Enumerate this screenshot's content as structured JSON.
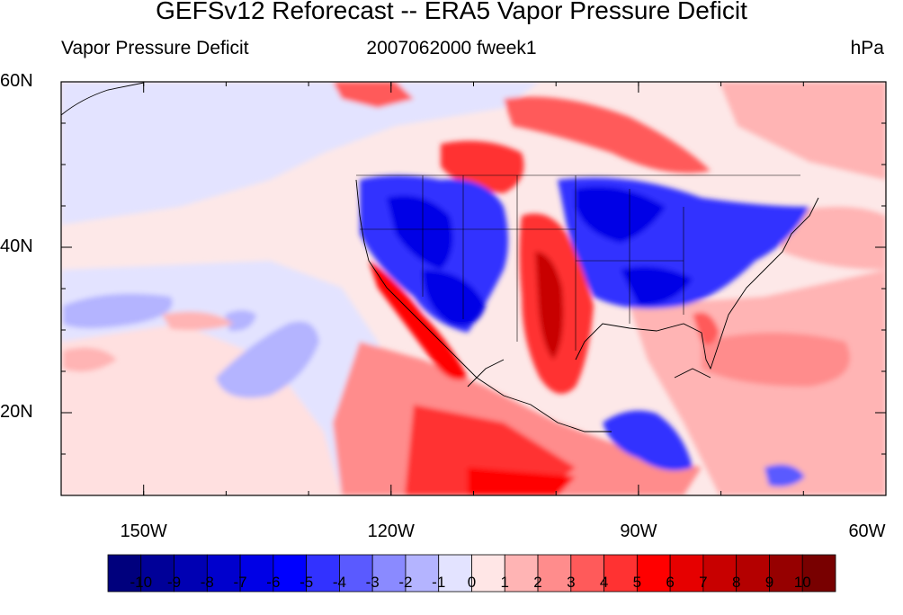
{
  "header": {
    "title": "GEFSv12 Reforecast -- ERA5 Vapor Pressure Deficit",
    "left": "Vapor Pressure Deficit",
    "center": "2007062000 fweek1",
    "right": "hPa"
  },
  "map": {
    "extent": {
      "lon": [
        -160,
        -60
      ],
      "lat": [
        10,
        60
      ]
    },
    "lat_ticks": [
      {
        "value": 60,
        "label": "60N"
      },
      {
        "value": 40,
        "label": "40N"
      },
      {
        "value": 20,
        "label": "20N"
      }
    ],
    "lon_ticks": [
      {
        "value": -150,
        "label": "150W"
      },
      {
        "value": -120,
        "label": "120W"
      },
      {
        "value": -90,
        "label": "90W"
      },
      {
        "value": -60,
        "label": "60W"
      }
    ],
    "background_color": "#fde8e8"
  },
  "colorbar": {
    "colors": [
      "#00007d",
      "#000098",
      "#0000b3",
      "#0000cd",
      "#0000e6",
      "#0000ff",
      "#3232ff",
      "#5a5aff",
      "#8a8aff",
      "#b4b4ff",
      "#e3e3ff",
      "#ffe6e6",
      "#ffb4b4",
      "#ff8c8c",
      "#ff5a5a",
      "#ff3232",
      "#ff0000",
      "#e60000",
      "#c80000",
      "#b40000",
      "#960000",
      "#780000"
    ],
    "labels": [
      "-10",
      "-9",
      "-8",
      "-7",
      "-6",
      "-5",
      "-4",
      "-3",
      "-2",
      "-1",
      "0",
      "1",
      "2",
      "3",
      "4",
      "5",
      "6",
      "7",
      "8",
      "9",
      "10"
    ]
  }
}
